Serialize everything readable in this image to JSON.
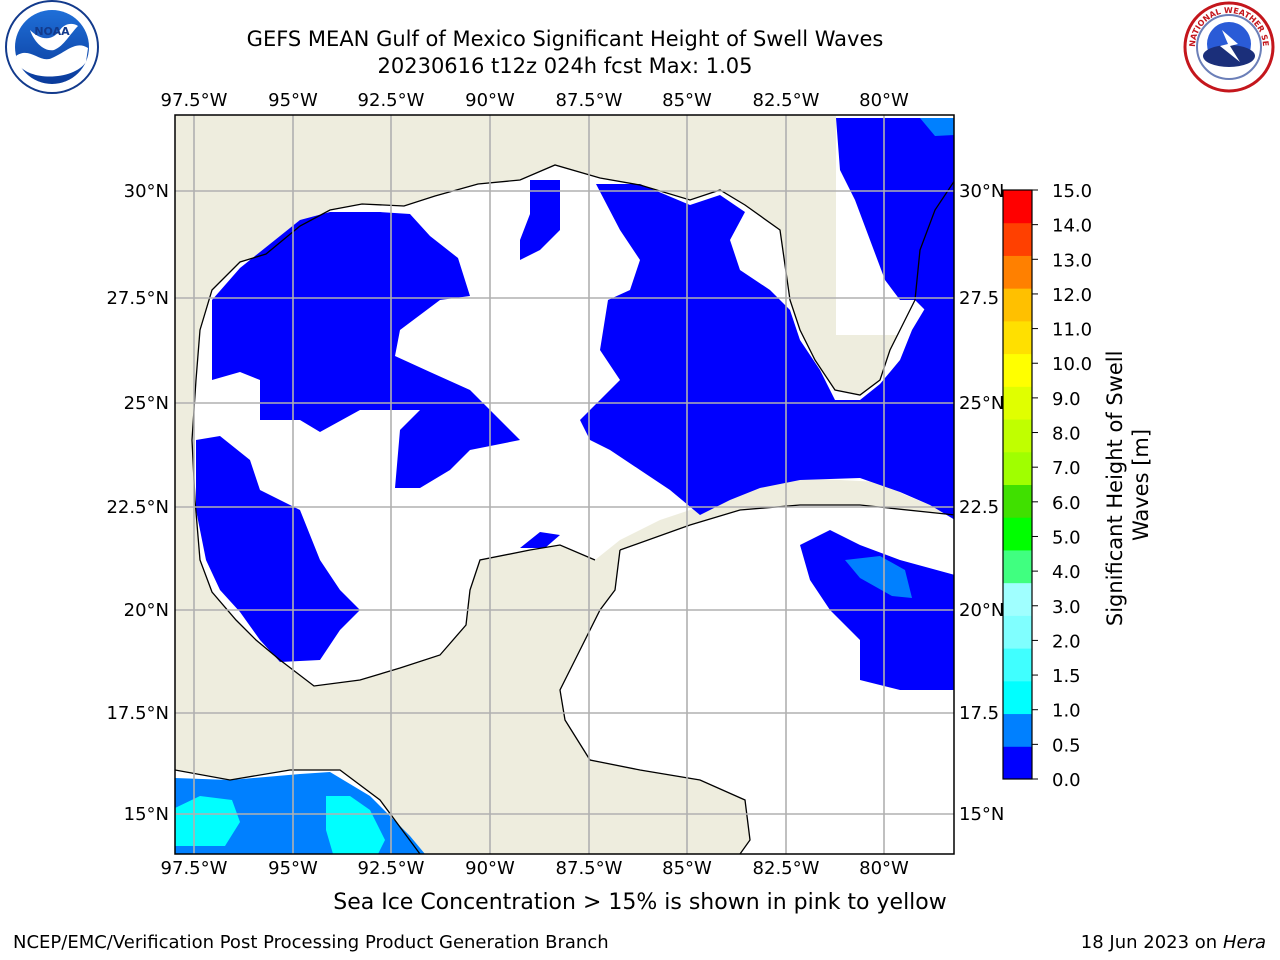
{
  "title": {
    "line1": "GEFS MEAN Gulf of Mexico Significant Height of Swell Waves",
    "line2": "20230616 t12z 024h fcst   Max: 1.05"
  },
  "map": {
    "lon_labels": [
      "97.5°W",
      "95°W",
      "92.5°W",
      "90°W",
      "87.5°W",
      "85°W",
      "82.5°W",
      "80°W"
    ],
    "lat_labels_left": [
      "30°N",
      "27.5°N",
      "25°N",
      "22.5°N",
      "20°N",
      "17.5°N",
      "15°N"
    ],
    "lat_labels_right": [
      "30°N",
      "27.5",
      "25°N",
      "22.5",
      "20°N",
      "17.5",
      "15°N"
    ],
    "lon_range": [
      -98.0,
      -78.3
    ],
    "lat_range": [
      14.0,
      31.8
    ],
    "colors": {
      "land": "#eeedde",
      "ocean_no_data": "#ffffff",
      "grid": "#b0b0b0"
    }
  },
  "colorbar": {
    "label": "Significant Height of Swell Waves [m]",
    "ticks": [
      "0.0",
      "0.5",
      "1.0",
      "1.5",
      "2.0",
      "3.0",
      "4.0",
      "5.0",
      "6.0",
      "7.0",
      "8.0",
      "9.0",
      "10.0",
      "11.0",
      "12.0",
      "13.0",
      "14.0",
      "15.0"
    ],
    "colors": [
      "#0000ff",
      "#0080ff",
      "#00ffff",
      "#40ffff",
      "#80ffff",
      "#a0ffff",
      "#40ff80",
      "#00ff00",
      "#40e000",
      "#a0ff00",
      "#c0ff00",
      "#e0ff00",
      "#ffff00",
      "#ffe000",
      "#ffc000",
      "#ff8000",
      "#ff4000",
      "#ff0000"
    ]
  },
  "note": "Sea Ice Concentration > 15% is shown in pink to yellow",
  "footer": {
    "left": "NCEP/EMC/Verification Post Processing Product Generation Branch",
    "date": "18 Jun 2023 on",
    "machine": "Hera"
  },
  "logos": {
    "noaa": "NOAA",
    "nws": "NATIONAL WEATHER SERVICE"
  }
}
